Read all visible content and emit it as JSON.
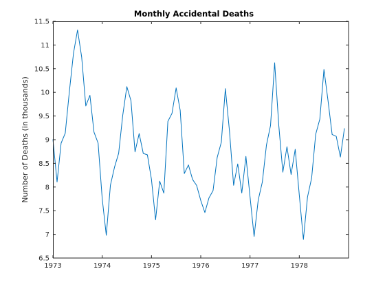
{
  "chart_data": {
    "type": "line",
    "title": "Monthly Accidental Deaths",
    "xlabel": "",
    "ylabel": "Number of Deaths (in thousands)",
    "xlim": [
      1973,
      1979
    ],
    "ylim": [
      6.5,
      11.5
    ],
    "x_ticks": [
      1973,
      1974,
      1975,
      1976,
      1977,
      1978
    ],
    "x_tick_labels": [
      "1973",
      "1974",
      "1975",
      "1976",
      "1977",
      "1978"
    ],
    "y_ticks": [
      6.5,
      7,
      7.5,
      8,
      8.5,
      9,
      9.5,
      10,
      10.5,
      11,
      11.5
    ],
    "y_tick_labels": [
      "6.5",
      "7",
      "7.5",
      "8",
      "8.5",
      "9",
      "9.5",
      "10",
      "10.5",
      "11",
      "11.5"
    ],
    "grid": false,
    "line_color": "#0072BD",
    "series": [
      {
        "x": [
          1973,
          1973.0833,
          1973.1667,
          1973.25,
          1973.3333,
          1973.4167,
          1973.5,
          1973.5833,
          1973.6667,
          1973.75,
          1973.8333,
          1973.9167,
          1974,
          1974.0833,
          1974.1667,
          1974.25,
          1974.3333,
          1974.4167,
          1974.5,
          1974.5833,
          1974.6667,
          1974.75,
          1974.8333,
          1974.9167,
          1975,
          1975.0833,
          1975.1667,
          1975.25,
          1975.3333,
          1975.4167,
          1975.5,
          1975.5833,
          1975.6667,
          1975.75,
          1975.8333,
          1975.9167,
          1976,
          1976.0833,
          1976.1667,
          1976.25,
          1976.3333,
          1976.4167,
          1976.5,
          1976.5833,
          1976.6667,
          1976.75,
          1976.8333,
          1976.9167,
          1977,
          1977.0833,
          1977.1667,
          1977.25,
          1977.3333,
          1977.4167,
          1977.5,
          1977.5833,
          1977.6667,
          1977.75,
          1977.8333,
          1977.9167,
          1978,
          1978.0833,
          1978.1667,
          1978.25,
          1978.3333,
          1978.4167,
          1978.5,
          1978.5833,
          1978.6667,
          1978.75,
          1978.8333,
          1978.9167
        ],
        "values": [
          9.007,
          8.106,
          8.928,
          9.137,
          10.017,
          10.826,
          11.317,
          10.744,
          9.713,
          9.938,
          9.161,
          8.927,
          7.75,
          6.981,
          8.038,
          8.422,
          8.714,
          9.512,
          10.12,
          9.823,
          8.743,
          9.129,
          8.71,
          8.68,
          8.162,
          7.306,
          8.124,
          7.87,
          9.387,
          9.556,
          10.093,
          9.62,
          8.285,
          8.466,
          8.16,
          8.034,
          7.717,
          7.461,
          7.767,
          7.925,
          8.623,
          8.945,
          10.078,
          9.179,
          8.037,
          8.488,
          7.874,
          8.647,
          7.792,
          6.957,
          7.726,
          8.106,
          8.89,
          9.299,
          10.625,
          9.302,
          8.314,
          8.85,
          8.265,
          8.796,
          7.836,
          6.892,
          7.791,
          8.192,
          9.115,
          9.434,
          10.484,
          9.827,
          9.11,
          9.07,
          8.633,
          9.24
        ]
      }
    ]
  }
}
